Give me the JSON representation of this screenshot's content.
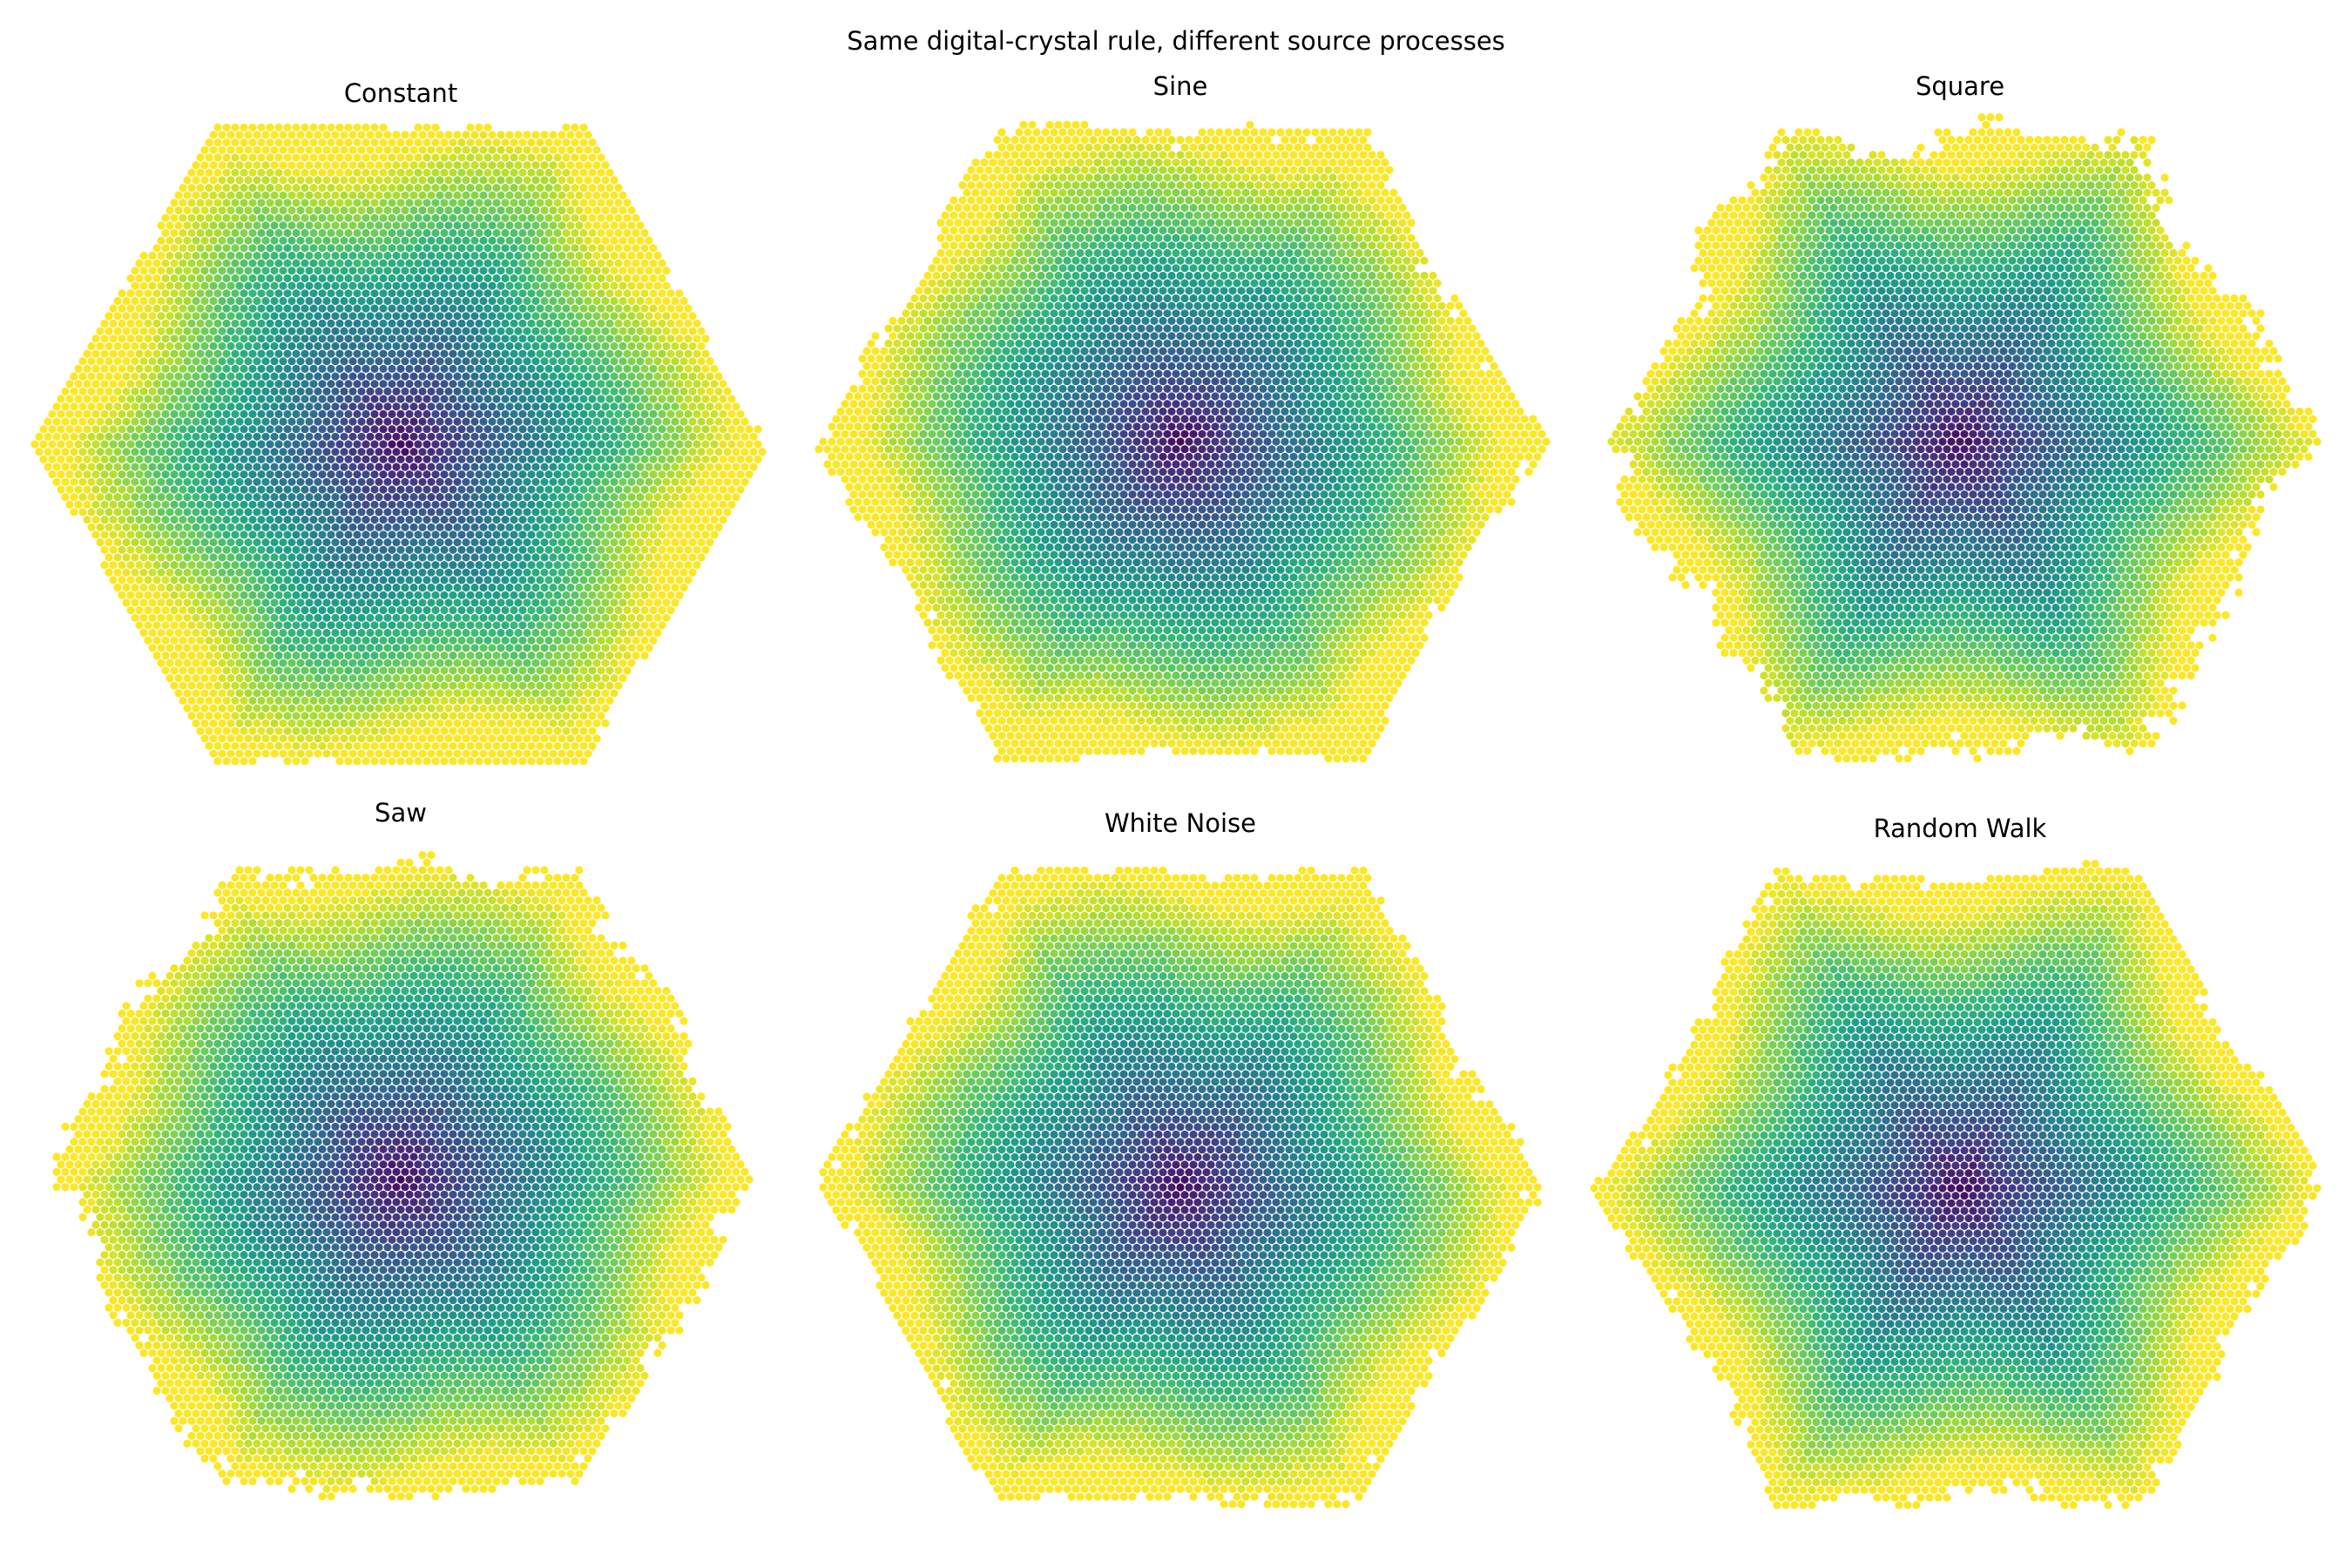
{
  "figure": {
    "title": "Same digital-crystal rule, different source processes"
  },
  "chart_data": [
    {
      "type": "scatter",
      "title": "Constant",
      "rule": "hexagonal digital crystal",
      "colormap": "viridis",
      "color_meaning": "growth step (dark at seed center, yellow at rim)",
      "axes_visible": false,
      "boundary_roughness": 0.05
    },
    {
      "type": "scatter",
      "title": "Sine",
      "rule": "hexagonal digital crystal",
      "colormap": "viridis",
      "color_meaning": "growth step (dark at seed center, yellow at rim)",
      "axes_visible": false,
      "boundary_roughness": 0.35
    },
    {
      "type": "scatter",
      "title": "Square",
      "rule": "hexagonal digital crystal",
      "colormap": "viridis",
      "color_meaning": "growth step (dark at seed center, yellow at rim)",
      "axes_visible": false,
      "boundary_roughness": 0.9
    },
    {
      "type": "scatter",
      "title": "Saw",
      "rule": "hexagonal digital crystal",
      "colormap": "viridis",
      "color_meaning": "growth step (dark at seed center, yellow at rim)",
      "axes_visible": false,
      "boundary_roughness": 0.7
    },
    {
      "type": "scatter",
      "title": "White Noise",
      "rule": "hexagonal digital crystal",
      "colormap": "viridis",
      "color_meaning": "growth step (dark at seed center, yellow at rim)",
      "axes_visible": false,
      "boundary_roughness": 0.3
    },
    {
      "type": "scatter",
      "title": "Random Walk",
      "rule": "hexagonal digital crystal",
      "colormap": "viridis",
      "color_meaning": "growth step (dark at seed center, yellow at rim)",
      "axes_visible": false,
      "boundary_roughness": 0.45
    }
  ]
}
